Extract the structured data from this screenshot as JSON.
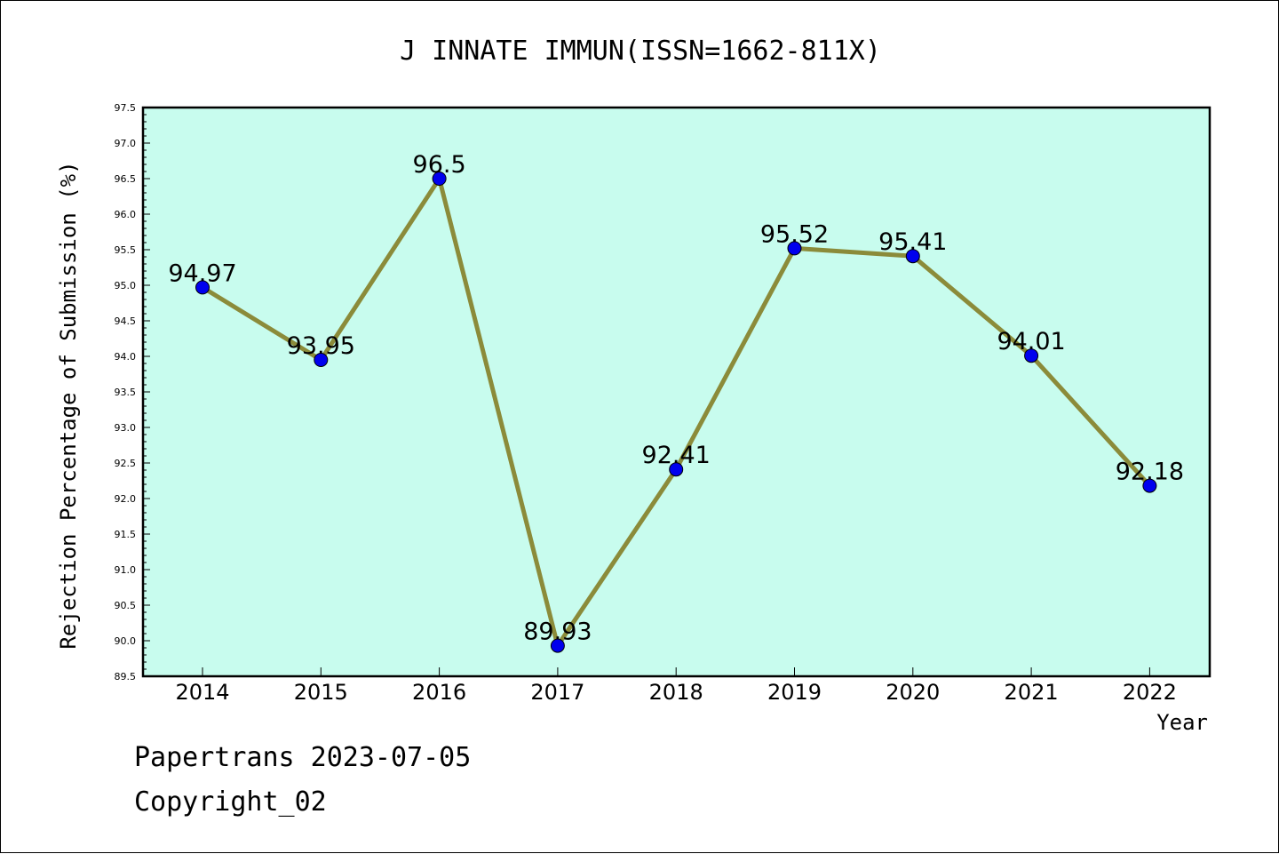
{
  "footer": {
    "line1": "Papertrans 2023-07-05",
    "line2": "Copyright_02"
  },
  "chart_data": {
    "type": "line",
    "title": "J INNATE IMMUN(ISSN=1662-811X)",
    "xlabel": "Year",
    "ylabel": "Rejection Percentage of Submission (%)",
    "categories": [
      "2014",
      "2015",
      "2016",
      "2017",
      "2018",
      "2019",
      "2020",
      "2021",
      "2022"
    ],
    "values": [
      94.97,
      93.95,
      96.5,
      89.93,
      92.41,
      95.52,
      95.41,
      94.01,
      92.18
    ],
    "data_labels": [
      "94.97",
      "93.95",
      "96.5",
      "89.93",
      "92.41",
      "95.52",
      "95.41",
      "94.01",
      "92.18"
    ],
    "ylim": [
      89.5,
      97.5
    ],
    "yticks": [
      "89.5",
      "90.0",
      "90.5",
      "91.0",
      "91.5",
      "92.0",
      "92.5",
      "93.0",
      "93.5",
      "94.0",
      "94.5",
      "95.0",
      "95.5",
      "96.0",
      "96.5",
      "97.0",
      "97.5"
    ],
    "grid": false,
    "colors": {
      "plot_background": "#c8fcee",
      "line": "#8b8b3a",
      "marker": "#0000ee"
    }
  }
}
